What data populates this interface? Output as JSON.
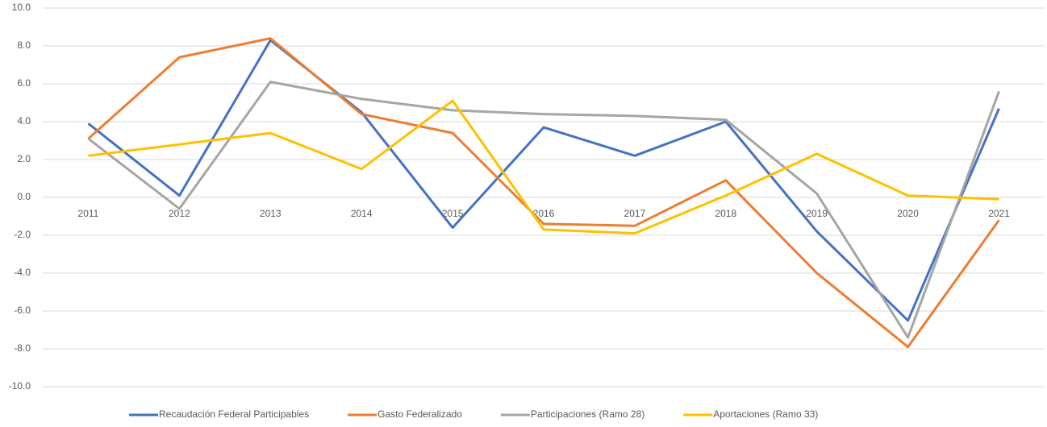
{
  "chart_data": {
    "type": "line",
    "categories": [
      "2011",
      "2012",
      "2013",
      "2014",
      "2015",
      "2016",
      "2017",
      "2018",
      "2019",
      "2020",
      "2021"
    ],
    "series": [
      {
        "name": "Recaudación Federal Participables",
        "color": "#4472c4",
        "values": [
          3.9,
          0.1,
          8.3,
          4.5,
          -1.6,
          3.7,
          2.2,
          4.0,
          -1.8,
          -6.5,
          4.7
        ]
      },
      {
        "name": "Gasto Federalizado",
        "color": "#ed7d31",
        "values": [
          3.1,
          7.4,
          8.4,
          4.4,
          3.4,
          -1.4,
          -1.5,
          0.9,
          -4.0,
          -7.9,
          -1.2
        ]
      },
      {
        "name": "Participaciones (Ramo 28)",
        "color": "#a5a5a5",
        "values": [
          3.1,
          -0.6,
          6.1,
          5.2,
          4.6,
          4.4,
          4.3,
          4.1,
          0.2,
          -7.4,
          5.6
        ]
      },
      {
        "name": "Aportaciones (Ramo 33)",
        "color": "#ffc000",
        "values": [
          2.2,
          2.8,
          3.4,
          1.5,
          5.1,
          -1.7,
          -1.9,
          0.1,
          2.3,
          0.1,
          -0.1
        ]
      }
    ],
    "ylim": [
      -10,
      10
    ],
    "yticks": [
      {
        "value": 10,
        "label": "10.0"
      },
      {
        "value": 8,
        "label": "8.0"
      },
      {
        "value": 6,
        "label": "6.0"
      },
      {
        "value": 4,
        "label": "4.0"
      },
      {
        "value": 2,
        "label": "2.0"
      },
      {
        "value": 0,
        "label": "0.0"
      },
      {
        "value": -2,
        "label": "-2.0"
      },
      {
        "value": -4,
        "label": "-4.0"
      },
      {
        "value": -6,
        "label": "-6.0"
      },
      {
        "value": -8,
        "label": "-8.0"
      },
      {
        "value": -10,
        "label": "-10.0"
      }
    ],
    "grid": true,
    "legend": "bottom"
  }
}
